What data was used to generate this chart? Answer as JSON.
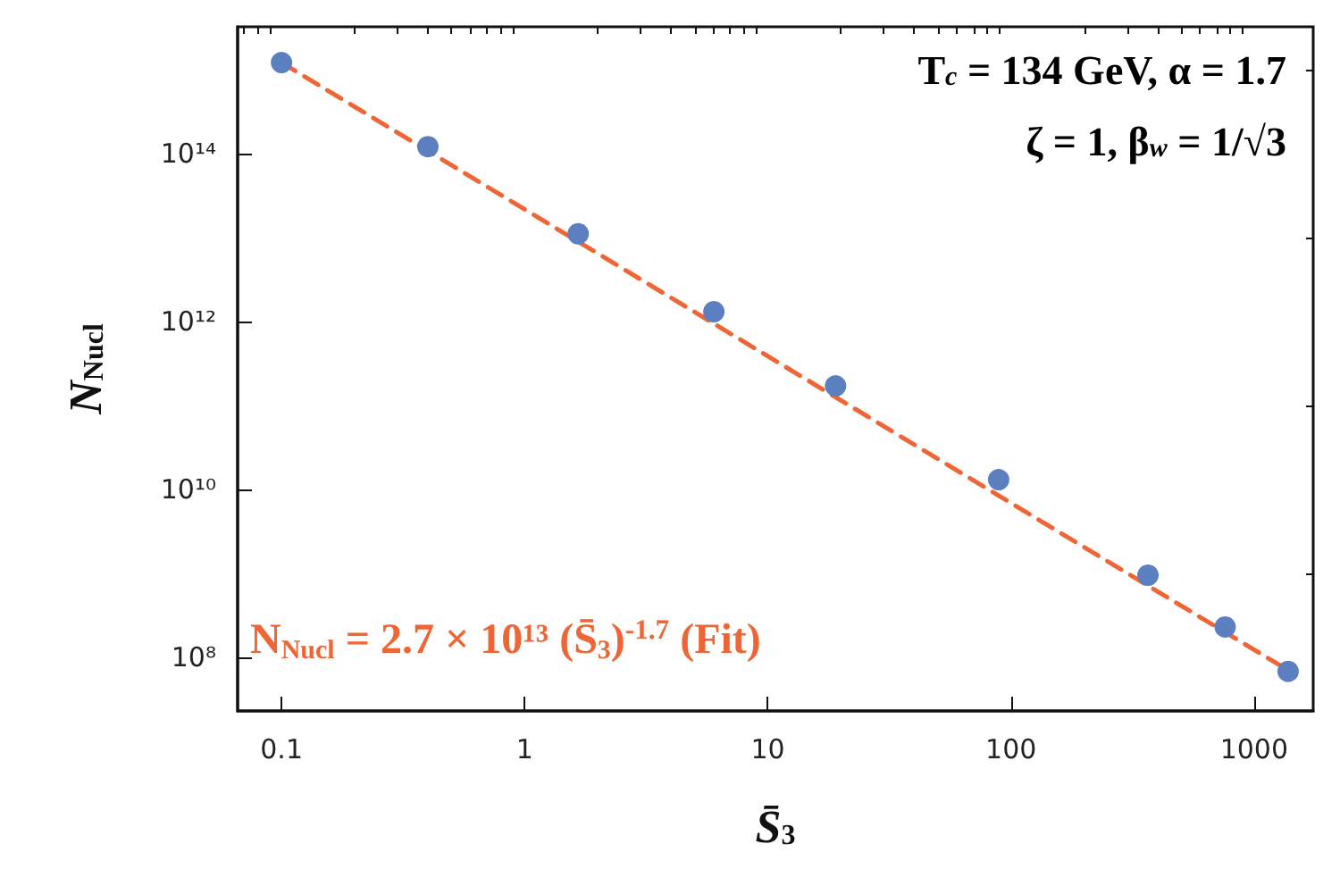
{
  "chart_data": {
    "type": "scatter",
    "xlabel": "S̄$_{3}$",
    "ylabel": "N$_{Nucl}$",
    "log": "xy",
    "xlim": [
      0.066,
      1750
    ],
    "ylim": [
      23000000.0,
      3200000000000000.0
    ],
    "xticks": [
      {
        "value": 0.07,
        "label": null
      },
      {
        "value": 0.08,
        "label": null
      },
      {
        "value": 0.09,
        "label": null
      },
      0.1,
      {
        "value": 0.2,
        "label": null
      },
      {
        "value": 0.3,
        "label": null
      },
      {
        "value": 0.4,
        "label": null
      },
      {
        "value": 0.5,
        "label": null
      },
      {
        "value": 0.6,
        "label": null
      },
      {
        "value": 0.7,
        "label": null
      },
      {
        "value": 0.8,
        "label": null
      },
      {
        "value": 0.9,
        "label": null
      },
      1,
      {
        "value": 2,
        "label": null
      },
      {
        "value": 3,
        "label": null
      },
      {
        "value": 4,
        "label": null
      },
      {
        "value": 5,
        "label": null
      },
      {
        "value": 6,
        "label": null
      },
      {
        "value": 7,
        "label": null
      },
      {
        "value": 8,
        "label": null
      },
      {
        "value": 9,
        "label": null
      },
      10,
      {
        "value": 20,
        "label": null
      },
      {
        "value": 30,
        "label": null
      },
      {
        "value": 40,
        "label": null
      },
      {
        "value": 50,
        "label": null
      },
      {
        "value": 60,
        "label": null
      },
      {
        "value": 70,
        "label": null
      },
      {
        "value": 80,
        "label": null
      },
      {
        "value": 90,
        "label": null
      },
      100,
      {
        "value": 200,
        "label": null
      },
      {
        "value": 300,
        "label": null
      },
      {
        "value": 400,
        "label": null
      },
      {
        "value": 500,
        "label": null
      },
      {
        "value": 600,
        "label": null
      },
      {
        "value": 700,
        "label": null
      },
      {
        "value": 800,
        "label": null
      },
      {
        "value": 900,
        "label": null
      },
      1000
    ],
    "yticks": [
      {
        "value": 100000000.0,
        "label": "10⁸"
      },
      {
        "value": 1000000000.0,
        "label": null
      },
      {
        "value": 10000000000.0,
        "label": "10¹⁰"
      },
      {
        "value": 100000000000.0,
        "label": null
      },
      {
        "value": 1000000000000.0,
        "label": "10¹²"
      },
      {
        "value": 10000000000000.0,
        "label": null
      },
      {
        "value": 100000000000000.0,
        "label": "10¹⁴"
      },
      {
        "value": 1000000000000000.0,
        "label": null
      }
    ],
    "series": [
      {
        "marker": "circle",
        "color": "#5b7fbf",
        "x": [
          0.1,
          0.4,
          1.66,
          6.0,
          19,
          89,
          366,
          760,
          1380
        ],
        "values": [
          1200000000000000.0,
          120000000000000.0,
          11000000000000.0,
          1300000000000.0,
          170000000000.0,
          13000000000.0,
          950000000.0,
          230000000.0,
          68000000.0
        ]
      },
      {
        "type": "line",
        "marker": "none",
        "line_style": "dashed",
        "name": "N$_{Nucl}$ = 2.7 × 10¹³ (S̄$_{3}$)$^{-1.7}$ (Fit)",
        "color": "#ee6536",
        "x": [
          0.1,
          1480
        ],
        "values": [
          1200000000000000.0,
          62000000.0
        ]
      }
    ],
    "annotations": [
      "T$_{c}$ = 134 GeV, α = 1.7",
      "ζ = 1, β$_{w}$ = 1/√3"
    ]
  }
}
